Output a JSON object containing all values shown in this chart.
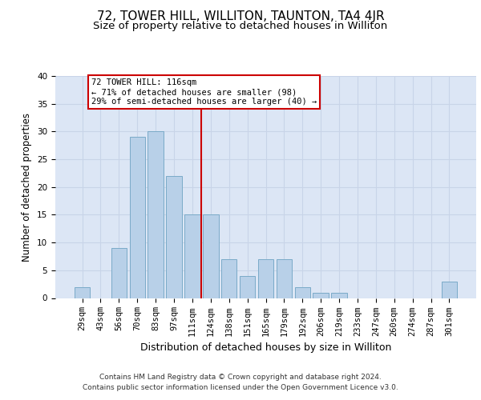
{
  "title": "72, TOWER HILL, WILLITON, TAUNTON, TA4 4JR",
  "subtitle": "Size of property relative to detached houses in Williton",
  "xlabel": "Distribution of detached houses by size in Williton",
  "ylabel": "Number of detached properties",
  "categories": [
    "29sqm",
    "43sqm",
    "56sqm",
    "70sqm",
    "83sqm",
    "97sqm",
    "111sqm",
    "124sqm",
    "138sqm",
    "151sqm",
    "165sqm",
    "179sqm",
    "192sqm",
    "206sqm",
    "219sqm",
    "233sqm",
    "247sqm",
    "260sqm",
    "274sqm",
    "287sqm",
    "301sqm"
  ],
  "values": [
    2,
    0,
    9,
    29,
    30,
    22,
    15,
    15,
    7,
    4,
    7,
    7,
    2,
    1,
    1,
    0,
    0,
    0,
    0,
    0,
    3
  ],
  "bar_color": "#b8d0e8",
  "bar_edge_color": "#7aaac8",
  "vline_color": "#cc0000",
  "vline_x_index": 6.5,
  "annotation_text": "72 TOWER HILL: 116sqm\n← 71% of detached houses are smaller (98)\n29% of semi-detached houses are larger (40) →",
  "annotation_box_color": "#ffffff",
  "annotation_box_edge": "#cc0000",
  "ylim": [
    0,
    40
  ],
  "yticks": [
    0,
    5,
    10,
    15,
    20,
    25,
    30,
    35,
    40
  ],
  "grid_color": "#c8d4e8",
  "background_color": "#dce6f5",
  "footer_line1": "Contains HM Land Registry data © Crown copyright and database right 2024.",
  "footer_line2": "Contains public sector information licensed under the Open Government Licence v3.0.",
  "title_fontsize": 11,
  "subtitle_fontsize": 9.5,
  "xlabel_fontsize": 9,
  "ylabel_fontsize": 8.5,
  "tick_fontsize": 7.5,
  "footer_fontsize": 6.5,
  "annotation_fontsize": 7.5
}
